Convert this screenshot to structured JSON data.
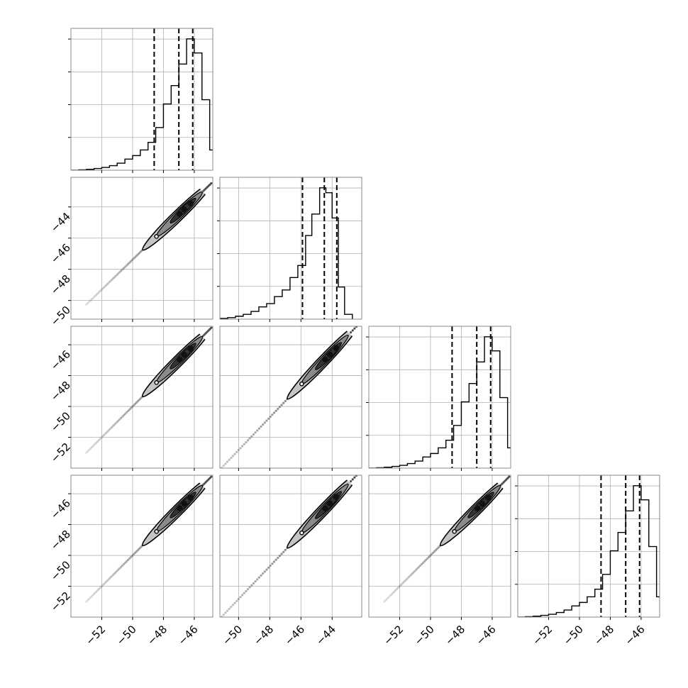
{
  "chart_data": {
    "type": "corner",
    "title": "",
    "n_params": 4,
    "parameter_labels": [
      "",
      "",
      "",
      ""
    ],
    "param_ranges": [
      [
        -54.0,
        -44.8
      ],
      [
        -51.2,
        -42.1
      ],
      [
        -54.0,
        -44.8
      ],
      [
        -54.0,
        -44.8
      ]
    ],
    "ticks": [
      [
        -52,
        -50,
        -48,
        -46
      ],
      [
        -50,
        -48,
        -46,
        -44
      ],
      [
        -52,
        -50,
        -48,
        -46
      ],
      [
        -52,
        -50,
        -48,
        -46
      ]
    ],
    "tick_labels": [
      [
        "−52",
        "−50",
        "−48",
        "−46"
      ],
      [
        "−50",
        "−48",
        "−46",
        "−44"
      ],
      [
        "−52",
        "−50",
        "−48",
        "−46"
      ],
      [
        "−52",
        "−50",
        "−48",
        "−46"
      ]
    ],
    "quantiles": [
      [
        -48.6,
        -47.0,
        -46.1
      ],
      [
        -45.9,
        -44.5,
        -43.7
      ],
      [
        -48.6,
        -47.0,
        -46.1
      ],
      [
        -48.6,
        -47.0,
        -46.1
      ]
    ],
    "histograms": [
      {
        "bin_edges": [
          -54.0,
          -53.5,
          -53.0,
          -52.5,
          -52.0,
          -51.5,
          -51.0,
          -50.5,
          -50.0,
          -49.5,
          -49.0,
          -48.5,
          -48.0,
          -47.5,
          -47.0,
          -46.5,
          -46.0,
          -45.5,
          -45.0,
          -44.5
        ],
        "counts": [
          0,
          0.2,
          0.5,
          1.0,
          1.6,
          2.6,
          4.0,
          6.3,
          8.3,
          11.5,
          15.8,
          24.2,
          37.6,
          48.0,
          60.2,
          74.5,
          66.5,
          40.0,
          11.5
        ]
      },
      {
        "bin_edges": [
          -51.2,
          -50.7,
          -50.2,
          -49.7,
          -49.2,
          -48.7,
          -48.2,
          -47.7,
          -47.2,
          -46.7,
          -46.2,
          -45.7,
          -45.3,
          -44.8,
          -44.4,
          -44.0,
          -43.6,
          -43.2,
          -42.7
        ],
        "counts": [
          0.4,
          0.8,
          1.5,
          2.5,
          4.0,
          6.3,
          8.0,
          11.6,
          15.0,
          21.4,
          27.6,
          43.0,
          54.0,
          67.5,
          65.0,
          52.0,
          16.5,
          2.5
        ]
      },
      {
        "bin_edges": [
          -54.0,
          -53.5,
          -53.0,
          -52.5,
          -52.0,
          -51.5,
          -51.0,
          -50.5,
          -50.0,
          -49.5,
          -49.0,
          -48.5,
          -48.0,
          -47.5,
          -47.0,
          -46.5,
          -46.0,
          -45.5,
          -45.0,
          -44.5
        ],
        "counts": [
          0,
          0.2,
          0.5,
          1.0,
          1.6,
          2.6,
          4.0,
          6.3,
          8.3,
          11.5,
          15.8,
          24.2,
          37.6,
          48.0,
          60.2,
          74.5,
          66.5,
          40.0,
          11.5
        ]
      },
      {
        "bin_edges": [
          -54.0,
          -53.5,
          -53.0,
          -52.5,
          -52.0,
          -51.5,
          -51.0,
          -50.5,
          -50.0,
          -49.5,
          -49.0,
          -48.5,
          -48.0,
          -47.5,
          -47.0,
          -46.5,
          -46.0,
          -45.5,
          -45.0,
          -44.5
        ],
        "counts": [
          0,
          0.2,
          0.5,
          1.0,
          1.6,
          2.6,
          4.0,
          6.3,
          8.3,
          11.5,
          15.8,
          24.2,
          37.6,
          48.0,
          60.2,
          74.5,
          66.5,
          40.0,
          11.5
        ]
      }
    ],
    "scatter_tail": {
      "x_range": [
        -53.0,
        -44.9
      ],
      "slopes": {
        "1-0": 0.96,
        "2-0": 1.0,
        "2-1": 1.06,
        "3-0": 1.0,
        "3-1": 1.06,
        "3-2": 1.0
      }
    },
    "contour_levels": [
      0.5,
      1.0,
      1.5,
      2.0
    ],
    "grid": true,
    "legend": false
  }
}
